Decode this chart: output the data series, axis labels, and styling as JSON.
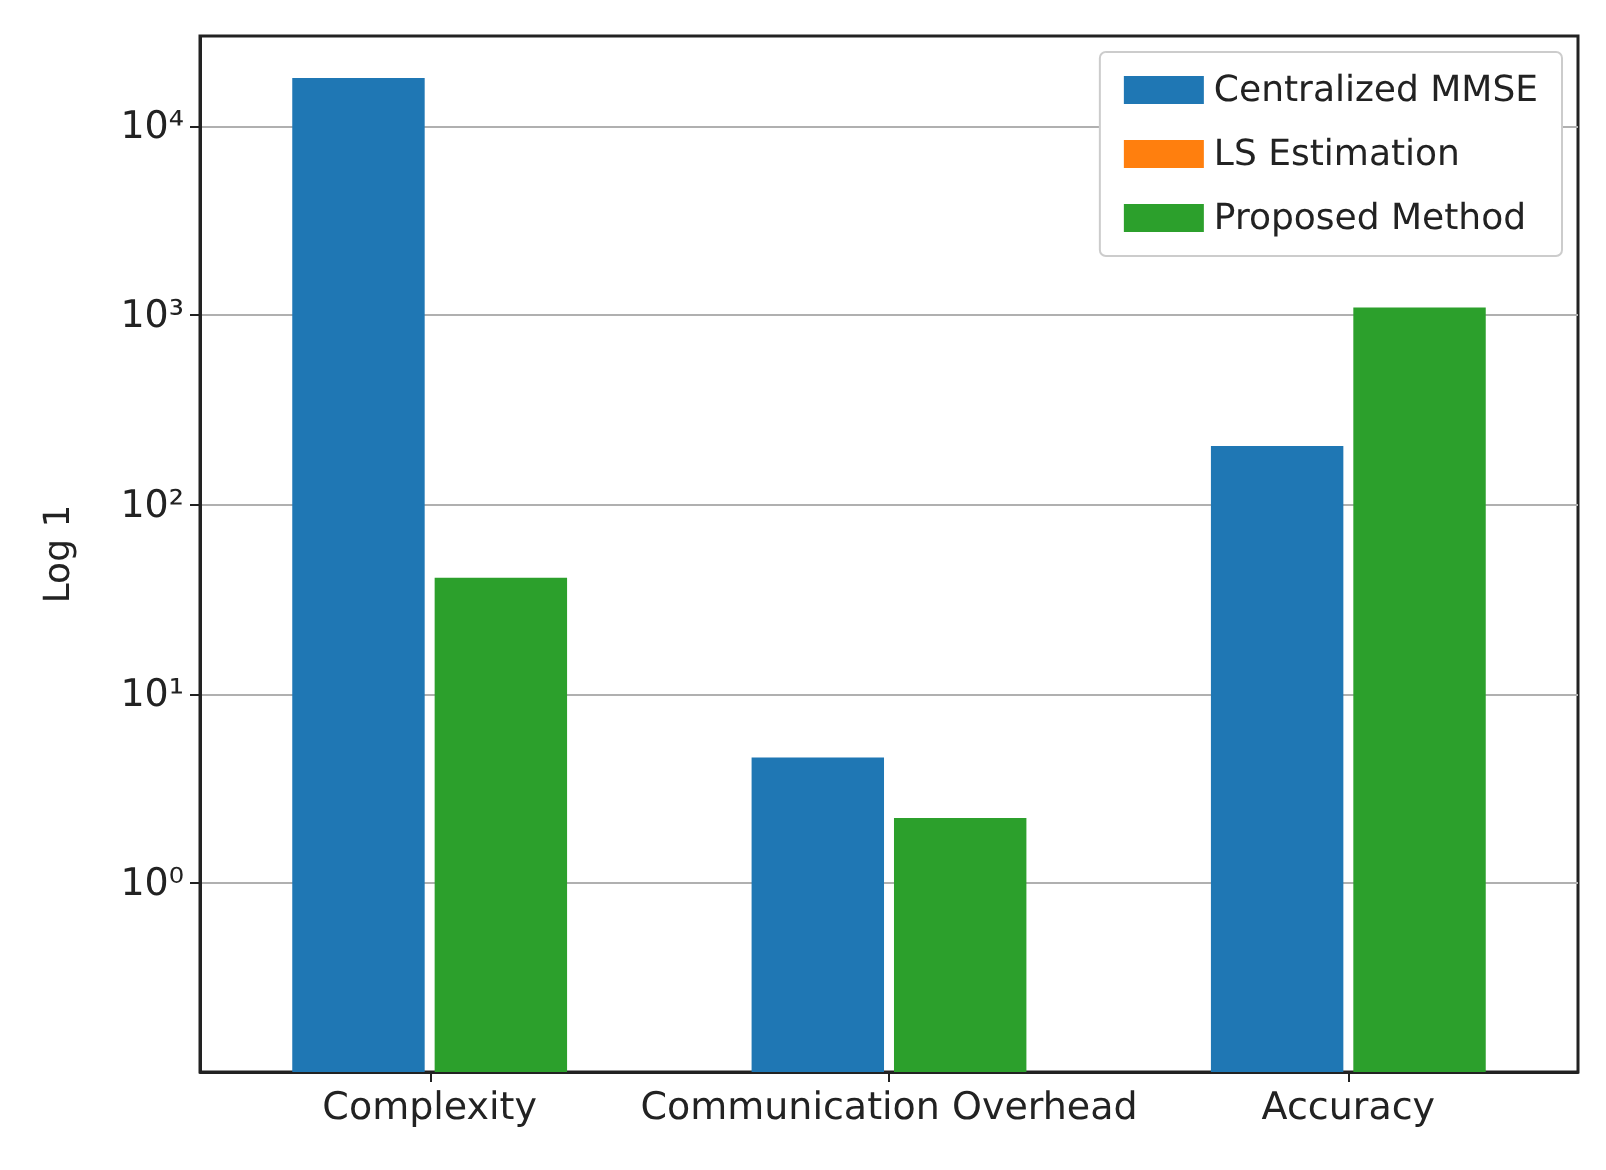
{
  "chart_data": {
    "type": "bar",
    "ylabel": "Log 1",
    "categories": [
      "Complexity",
      "Communication Overhead",
      "Accuracy"
    ],
    "series": [
      {
        "name": "Centralized MMSE",
        "color": "#1f77b4",
        "values": [
          18000,
          4.6,
          204
        ]
      },
      {
        "name": "LS Estimation",
        "color": "#ff7f0e",
        "values": [
          null,
          null,
          null
        ]
      },
      {
        "name": "Proposed Method",
        "color": "#2ca02c",
        "values": [
          41,
          2.2,
          1100
        ]
      }
    ],
    "log": "y",
    "ylim": [
      0.1,
      30000
    ],
    "yticks": [
      {
        "value": 1,
        "label": "10⁰"
      },
      {
        "value": 10,
        "label": "10¹"
      },
      {
        "value": 100,
        "label": "10²"
      },
      {
        "value": 1000,
        "label": "10³"
      },
      {
        "value": 10000,
        "label": "10⁴"
      }
    ],
    "grid": "y",
    "legend": "top right"
  }
}
